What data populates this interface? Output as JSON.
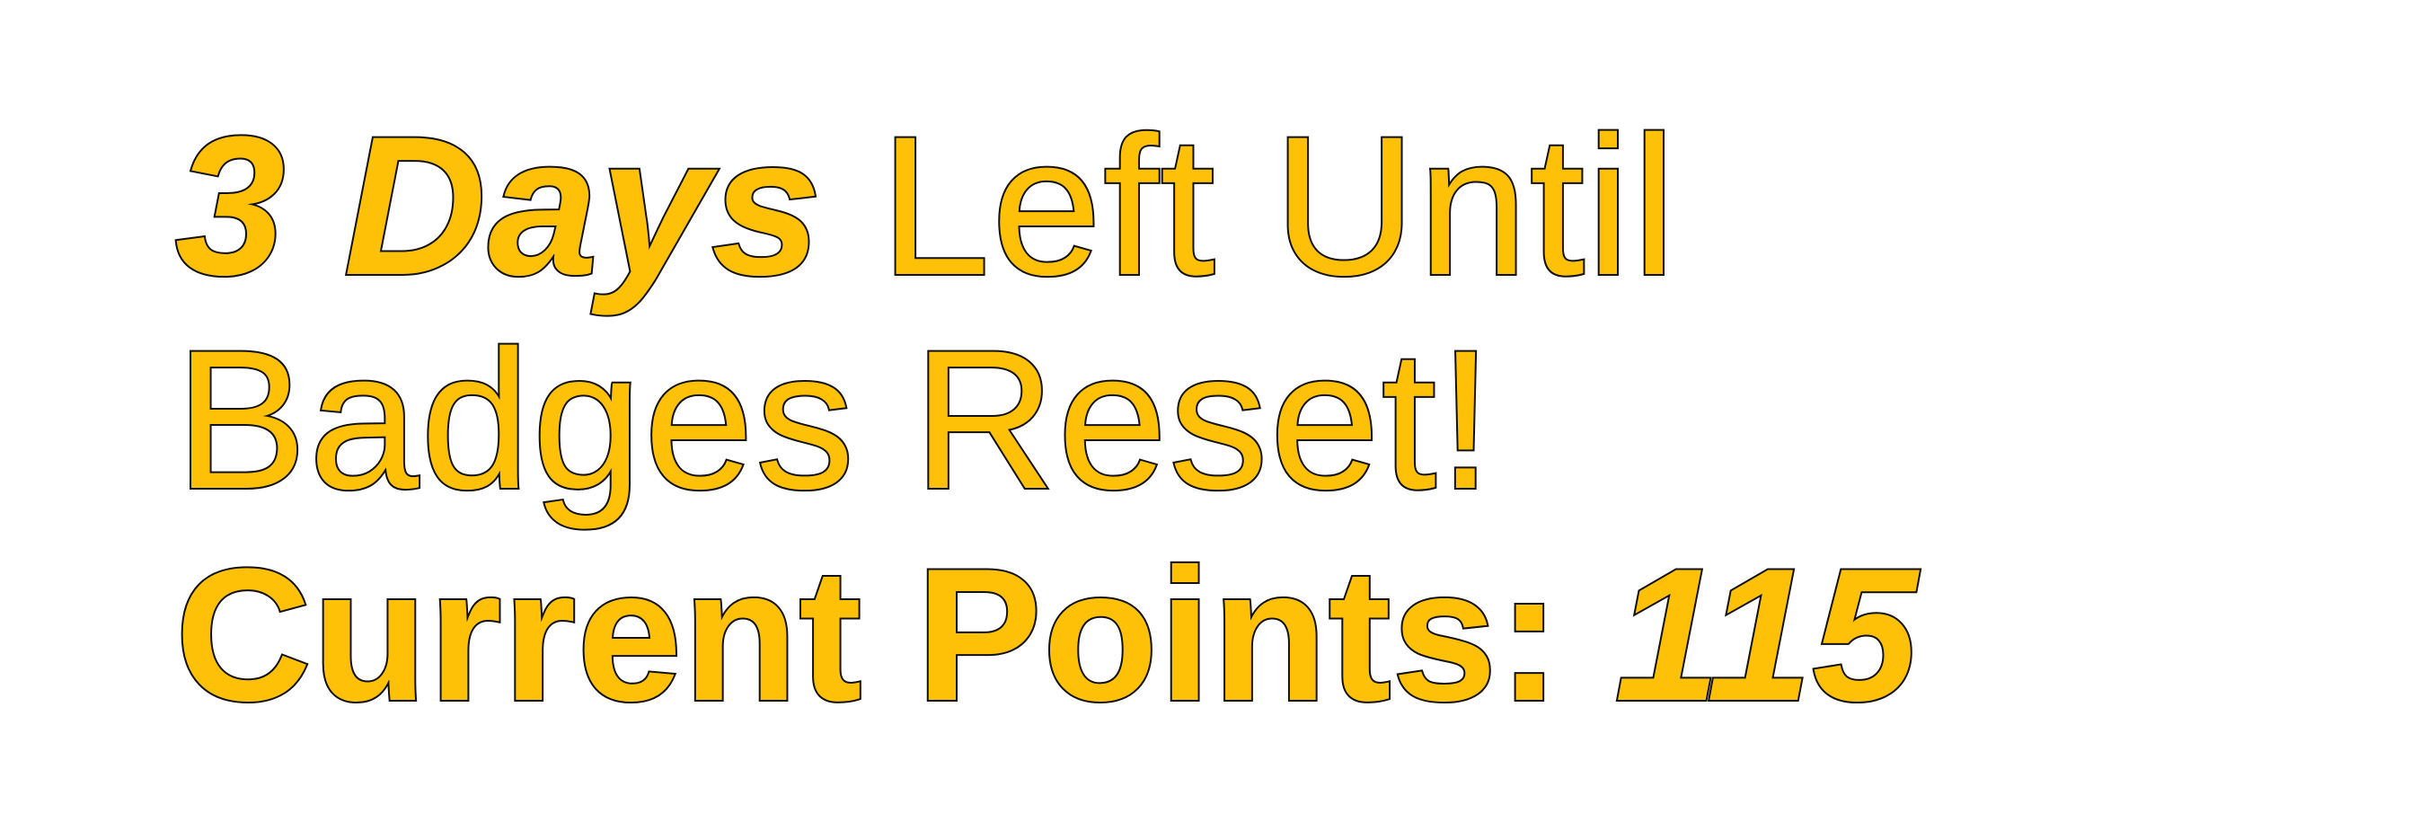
{
  "countdown": {
    "emphasis": "3 Days",
    "message": " Left Until Badges Reset!"
  },
  "points": {
    "label": "Current Points: ",
    "value": "115"
  },
  "colors": {
    "text_fill": "#FFC107",
    "text_outline": "#111111",
    "background": "#FFFFFF"
  }
}
